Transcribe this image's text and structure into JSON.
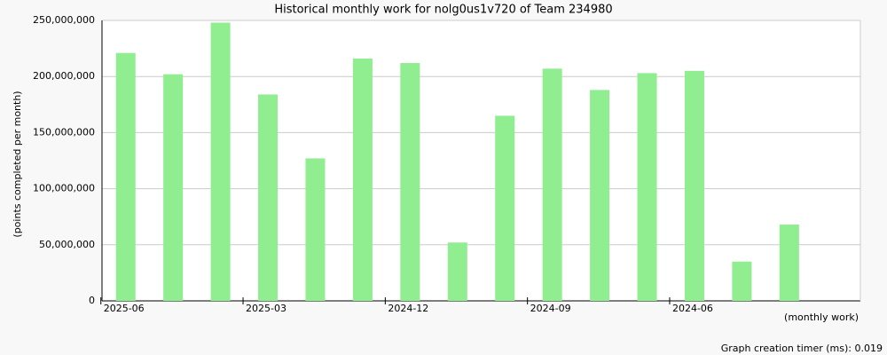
{
  "chart_data": {
    "type": "bar",
    "title": "Historical monthly work for nolg0us1v720 of Team 234980",
    "y_label": "(points completed per month)",
    "x_label": "(monthly work)",
    "footer": "Graph creation timer (ms): 0.019",
    "categories": [
      "2025-06",
      null,
      null,
      "2025-03",
      null,
      null,
      "2024-12",
      null,
      null,
      "2024-09",
      null,
      null,
      "2024-06",
      null,
      null
    ],
    "values": [
      221000000,
      202000000,
      248000000,
      184000000,
      127000000,
      216000000,
      212000000,
      52000000,
      165000000,
      207000000,
      188000000,
      203000000,
      205000000,
      35000000,
      68000000
    ],
    "color": "#90ee90",
    "ylim": [
      0,
      250000000
    ],
    "yticks": [
      0,
      {
        "value": 50000000,
        "label": "50,000,000"
      },
      {
        "value": 100000000,
        "label": "100,000,000"
      },
      {
        "value": 150000000,
        "label": "150,000,000"
      },
      {
        "value": 200000000,
        "label": "200,000,000"
      },
      {
        "value": 250000000,
        "label": "250,000,000"
      }
    ],
    "grid": true
  }
}
